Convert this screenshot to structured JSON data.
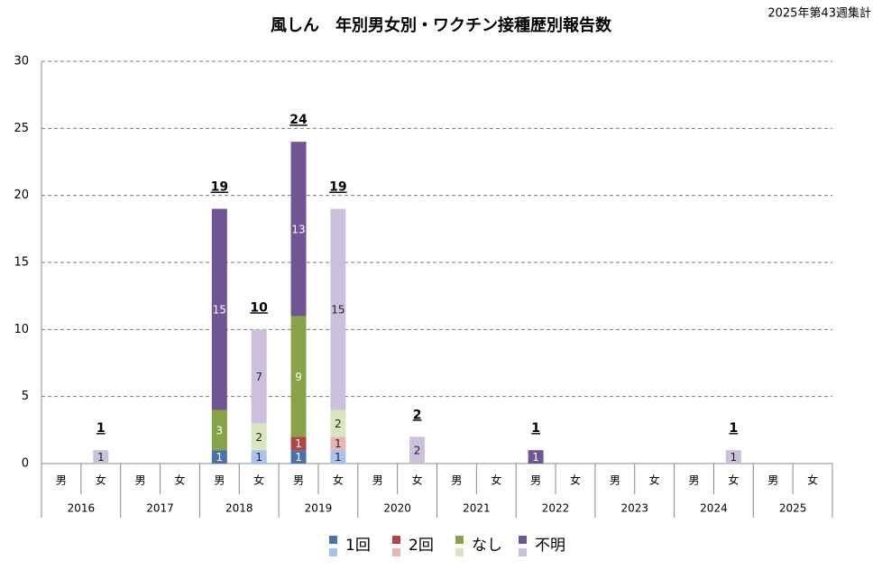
{
  "chart_data": {
    "type": "bar",
    "stacked": true,
    "title": "風しん　年別男女別・ワクチン接種歴別報告数",
    "subtitle": "2025年第43週集計",
    "groups": [
      "2016",
      "2017",
      "2018",
      "2019",
      "2020",
      "2021",
      "2022",
      "2023",
      "2024",
      "2025"
    ],
    "categories": [
      "男",
      "女",
      "男",
      "女",
      "男",
      "女",
      "男",
      "女",
      "男",
      "女",
      "男",
      "女",
      "男",
      "女",
      "男",
      "女",
      "男",
      "女",
      "男",
      "女"
    ],
    "series": [
      {
        "name": "1回",
        "colors": [
          "#4a72a8",
          "#a8c2ef"
        ],
        "values": [
          null,
          null,
          null,
          null,
          1,
          1,
          1,
          1,
          null,
          null,
          null,
          null,
          null,
          null,
          null,
          null,
          null,
          null,
          null,
          null
        ]
      },
      {
        "name": "2回",
        "colors": [
          "#b04545",
          "#e8b6b2"
        ],
        "values": [
          null,
          null,
          null,
          null,
          null,
          null,
          1,
          1,
          null,
          null,
          null,
          null,
          null,
          null,
          null,
          null,
          null,
          null,
          null,
          null
        ]
      },
      {
        "name": "なし",
        "colors": [
          "#86a447",
          "#d9e5bf"
        ],
        "values": [
          null,
          null,
          null,
          null,
          3,
          2,
          9,
          2,
          null,
          null,
          null,
          null,
          null,
          null,
          null,
          null,
          null,
          null,
          null,
          null
        ]
      },
      {
        "name": "不明",
        "colors": [
          "#6f5496",
          "#ccc1dd"
        ],
        "values": [
          null,
          1,
          null,
          null,
          15,
          7,
          13,
          15,
          null,
          2,
          null,
          null,
          1,
          null,
          null,
          null,
          null,
          1,
          null,
          null
        ]
      }
    ],
    "totals": [
      null,
      1,
      null,
      null,
      19,
      10,
      24,
      19,
      null,
      2,
      null,
      null,
      1,
      null,
      null,
      null,
      null,
      1,
      null,
      null
    ],
    "ylim": [
      0,
      30
    ],
    "yticks": [
      0,
      5,
      10,
      15,
      20,
      25,
      30
    ],
    "grid": true
  }
}
